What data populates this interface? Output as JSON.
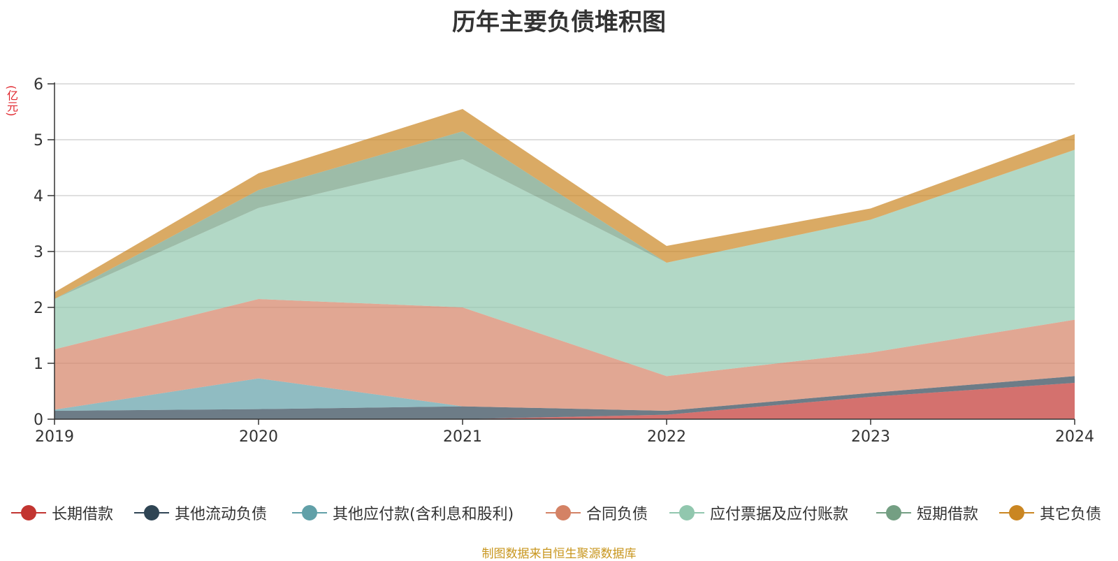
{
  "title": "历年主要负债堆积图",
  "source": "制图数据来自恒生聚源数据库",
  "chart_data": {
    "type": "area",
    "stacked": true,
    "title": "历年主要负债堆积图",
    "ylabel": "(亿元)",
    "xlabel": "",
    "x": [
      "2019",
      "2020",
      "2021",
      "2022",
      "2023",
      "2024"
    ],
    "ylim": [
      0,
      6
    ],
    "yticks": [
      "0",
      "1",
      "2",
      "3",
      "4",
      "5",
      "6"
    ],
    "grid": true,
    "legend_position": "bottom",
    "series": [
      {
        "name": "长期借款",
        "color": "#c23531",
        "values": [
          0,
          0,
          0,
          0.08,
          0.4,
          0.65
        ]
      },
      {
        "name": "其他流动负债",
        "color": "#2f4554",
        "values": [
          0.15,
          0.18,
          0.23,
          0.07,
          0.07,
          0.12
        ]
      },
      {
        "name": "其他应付款(含利息和股利)",
        "color": "#61a0a8",
        "values": [
          0.02,
          0.55,
          0.0,
          0.0,
          0.0,
          0.0
        ]
      },
      {
        "name": "合同负债",
        "color": "#d48265",
        "values": [
          1.08,
          1.42,
          1.77,
          0.62,
          0.72,
          1.01
        ]
      },
      {
        "name": "应付票据及应付账款",
        "color": "#91c7ae",
        "values": [
          0.9,
          1.63,
          2.65,
          2.03,
          2.38,
          3.04
        ]
      },
      {
        "name": "短期借款",
        "color": "#749f83",
        "values": [
          0.0,
          0.32,
          0.5,
          0.0,
          0.0,
          0.0
        ]
      },
      {
        "name": "其它负债",
        "color": "#ca8622",
        "values": [
          0.12,
          0.3,
          0.4,
          0.3,
          0.2,
          0.28
        ]
      }
    ]
  }
}
